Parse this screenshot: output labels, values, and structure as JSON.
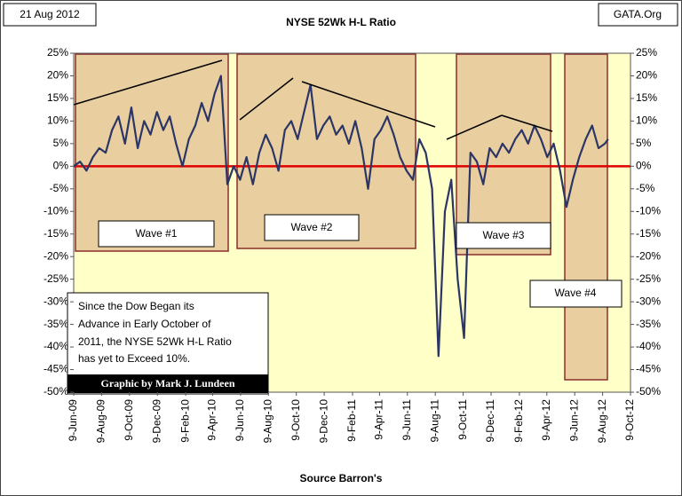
{
  "header": {
    "date": "21 Aug 2012",
    "source_site": "GATA.Org"
  },
  "chart_data": {
    "type": "line",
    "title": "NYSE 52Wk H-L Ratio",
    "x_label": "Source Barron's",
    "color": "#2b3566",
    "x": [
      "2009-06-09",
      "2009-06-23",
      "2009-07-07",
      "2009-07-21",
      "2009-08-04",
      "2009-08-18",
      "2009-09-01",
      "2009-09-15",
      "2009-09-29",
      "2009-10-13",
      "2009-10-27",
      "2009-11-10",
      "2009-11-24",
      "2009-12-08",
      "2009-12-22",
      "2010-01-05",
      "2010-01-19",
      "2010-02-02",
      "2010-02-16",
      "2010-03-02",
      "2010-03-16",
      "2010-03-30",
      "2010-04-13",
      "2010-04-27",
      "2010-05-11",
      "2010-05-25",
      "2010-06-08",
      "2010-06-22",
      "2010-07-06",
      "2010-07-20",
      "2010-08-03",
      "2010-08-17",
      "2010-08-31",
      "2010-09-14",
      "2010-09-28",
      "2010-10-12",
      "2010-10-26",
      "2010-11-09",
      "2010-11-23",
      "2010-12-07",
      "2010-12-21",
      "2011-01-04",
      "2011-01-18",
      "2011-02-01",
      "2011-02-15",
      "2011-03-01",
      "2011-03-15",
      "2011-03-29",
      "2011-04-12",
      "2011-04-26",
      "2011-05-10",
      "2011-05-24",
      "2011-06-07",
      "2011-06-21",
      "2011-07-05",
      "2011-07-19",
      "2011-08-02",
      "2011-08-16",
      "2011-08-30",
      "2011-09-13",
      "2011-09-27",
      "2011-10-11",
      "2011-10-25",
      "2011-11-08",
      "2011-11-22",
      "2011-12-06",
      "2011-12-20",
      "2012-01-03",
      "2012-01-17",
      "2012-01-31",
      "2012-02-14",
      "2012-02-28",
      "2012-03-13",
      "2012-03-27",
      "2012-04-10",
      "2012-04-24",
      "2012-05-08",
      "2012-05-22",
      "2012-06-05",
      "2012-06-19",
      "2012-07-03",
      "2012-07-17",
      "2012-07-31",
      "2012-08-14",
      "2012-08-21"
    ],
    "values": [
      0,
      1,
      -1,
      2,
      4,
      3,
      8,
      11,
      5,
      13,
      4,
      10,
      7,
      12,
      8,
      11,
      5,
      0,
      6,
      9,
      14,
      10,
      16,
      20,
      -4,
      0,
      -3,
      2,
      -4,
      3,
      7,
      4,
      -1,
      8,
      10,
      6,
      12,
      18,
      6,
      9,
      11,
      7,
      9,
      5,
      10,
      4,
      -5,
      6,
      8,
      11,
      7,
      2,
      -1,
      -3,
      6,
      3,
      -5,
      -42,
      -10,
      -3,
      -25,
      -38,
      3,
      1,
      -4,
      4,
      2,
      5,
      3,
      6,
      8,
      5,
      9,
      6,
      2,
      5,
      -1,
      -9,
      -3,
      2,
      6,
      9,
      4,
      5,
      6
    ],
    "xlim": [
      "2009-06-09",
      "2012-10-09"
    ],
    "xticks": [
      {
        "value": "2009-06-09",
        "label": "9-Jun-09"
      },
      {
        "value": "2009-08-09",
        "label": "9-Aug-09"
      },
      {
        "value": "2009-10-09",
        "label": "9-Oct-09"
      },
      {
        "value": "2009-12-09",
        "label": "9-Dec-09"
      },
      {
        "value": "2010-02-09",
        "label": "9-Feb-10"
      },
      {
        "value": "2010-04-09",
        "label": "9-Apr-10"
      },
      {
        "value": "2010-06-09",
        "label": "9-Jun-10"
      },
      {
        "value": "2010-08-09",
        "label": "9-Aug-10"
      },
      {
        "value": "2010-10-09",
        "label": "9-Oct-10"
      },
      {
        "value": "2010-12-09",
        "label": "9-Dec-10"
      },
      {
        "value": "2011-02-09",
        "label": "9-Feb-11"
      },
      {
        "value": "2011-04-09",
        "label": "9-Apr-11"
      },
      {
        "value": "2011-06-09",
        "label": "9-Jun-11"
      },
      {
        "value": "2011-08-09",
        "label": "9-Aug-11"
      },
      {
        "value": "2011-10-09",
        "label": "9-Oct-11"
      },
      {
        "value": "2011-12-09",
        "label": "9-Dec-11"
      },
      {
        "value": "2012-02-09",
        "label": "9-Feb-12"
      },
      {
        "value": "2012-04-09",
        "label": "9-Apr-12"
      },
      {
        "value": "2012-06-09",
        "label": "9-Jun-12"
      },
      {
        "value": "2012-08-09",
        "label": "9-Aug-12"
      },
      {
        "value": "2012-10-09",
        "label": "9-Oct-12"
      }
    ],
    "ylim": [
      -50,
      25
    ],
    "yticks": [
      {
        "value": -50,
        "label": "-50%"
      },
      {
        "value": -45,
        "label": "-45%"
      },
      {
        "value": -40,
        "label": "-40%"
      },
      {
        "value": -35,
        "label": "-35%"
      },
      {
        "value": -30,
        "label": "-30%"
      },
      {
        "value": -25,
        "label": "-25%"
      },
      {
        "value": -20,
        "label": "-20%"
      },
      {
        "value": -15,
        "label": "-15%"
      },
      {
        "value": -10,
        "label": "-10%"
      },
      {
        "value": -5,
        "label": "-5%"
      },
      {
        "value": 0,
        "label": "0%"
      },
      {
        "value": 5,
        "label": "5%"
      },
      {
        "value": 10,
        "label": "10%"
      },
      {
        "value": 15,
        "label": "15%"
      },
      {
        "value": 20,
        "label": "20%"
      },
      {
        "value": 25,
        "label": "25%"
      }
    ],
    "y2lim": [
      -50,
      25
    ],
    "y2ticks": [
      {
        "value": -50,
        "label": "-50%"
      },
      {
        "value": -45,
        "label": "-45%"
      },
      {
        "value": -40,
        "label": "-40%"
      },
      {
        "value": -35,
        "label": "-35%"
      },
      {
        "value": -30,
        "label": "-30%"
      },
      {
        "value": -25,
        "label": "-25%"
      },
      {
        "value": -20,
        "label": "-20%"
      },
      {
        "value": -15,
        "label": "-15%"
      },
      {
        "value": -10,
        "label": "-10%"
      },
      {
        "value": -5,
        "label": "-5%"
      },
      {
        "value": 0,
        "label": "0%"
      },
      {
        "value": 5,
        "label": "5%"
      },
      {
        "value": 10,
        "label": "10%"
      },
      {
        "value": 15,
        "label": "15%"
      },
      {
        "value": 20,
        "label": "20%"
      },
      {
        "value": 25,
        "label": "25%"
      }
    ],
    "annotations": {
      "wave_1": "Wave #1",
      "wave_2": "Wave #2",
      "wave_3": "Wave #3",
      "wave_4": "Wave #4",
      "note_lines": [
        "Since the Dow Began its",
        "Advance in Early October of",
        "2011, the NYSE 52Wk H-L Ratio",
        "has yet to Exceed 10%."
      ],
      "credit": "Graphic by Mark J. Lundeen"
    }
  }
}
